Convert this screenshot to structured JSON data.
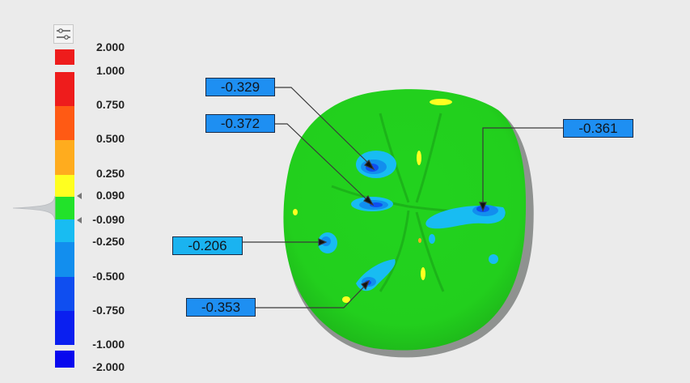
{
  "colors": {
    "background": "#ebebeb",
    "surface_green": "#22d31e",
    "callout_bg": "#1e8ff2",
    "callout_light_bg": "#1ab3f0"
  },
  "legend": {
    "settings_icon": "sliders-icon",
    "labels": [
      "2.000",
      "1.000",
      "0.750",
      "0.500",
      "0.250",
      "0.090",
      "-0.090",
      "-0.250",
      "-0.500",
      "-0.750",
      "-1.000",
      "-2.000"
    ],
    "bands": [
      "#ee1c1c",
      "#ff5a14",
      "#ffac1e",
      "#ffff20",
      "#22e22a",
      "#18bcf2",
      "#128eee",
      "#0f4ef0",
      "#0a1ff0",
      "#0808ee"
    ]
  },
  "callouts": [
    {
      "label": "-0.329",
      "color": "#1e8ff2"
    },
    {
      "label": "-0.372",
      "color": "#1e8ff2"
    },
    {
      "label": "-0.361",
      "color": "#1e8ff2"
    },
    {
      "label": "-0.206",
      "color": "#1ab3f0"
    },
    {
      "label": "-0.353",
      "color": "#1e8ff2"
    }
  ]
}
